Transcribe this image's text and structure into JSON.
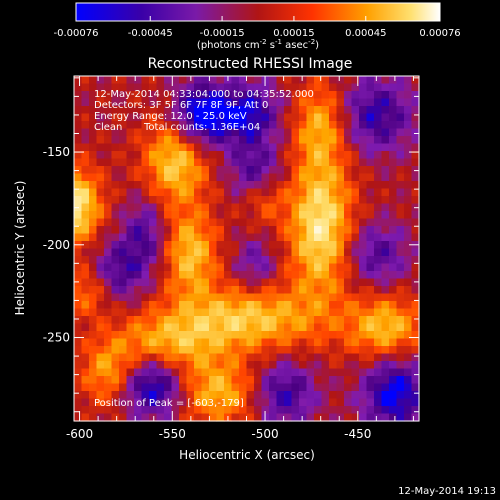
{
  "colorbar": {
    "ticks": [
      "-0.00076",
      "-0.00045",
      "-0.00015",
      "0.00015",
      "0.00045",
      "0.00076"
    ],
    "units_prefix": "(photons cm",
    "units_sup1": "-2",
    "units_mid": " s",
    "units_sup2": "-1",
    "units_mid2": " asec",
    "units_sup3": "-2",
    "units_suffix": ")",
    "min": -0.00076,
    "max": 0.00076
  },
  "annotations": {
    "line1": "12-May-2014 04:33:04.000 to 04:35:52.000",
    "line2": "Detectors: 3F 5F 6F 7F 8F 9F, Att 0",
    "line3": "Energy Range: 12.0 - 25.0 keV",
    "line4_a": "Clean",
    "line4_b": "Total counts: 1.36E+04",
    "peak": "Position of Peak = [-603,-179]"
  },
  "footer": {
    "timestamp": "12-May-2014 19:13"
  },
  "chart_data": {
    "type": "heatmap",
    "title": "Reconstructed RHESSI Image",
    "xlabel": "Heliocentric X (arcsec)",
    "ylabel": "Heliocentric Y (arcsec)",
    "xlim": [
      -603,
      -417
    ],
    "ylim": [
      -295,
      -109
    ],
    "xticks": [
      -600,
      -550,
      -500,
      -450
    ],
    "xtick_labels": [
      "-600",
      "-550",
      "-500",
      "-450"
    ],
    "yticks": [
      -150,
      -200,
      -250
    ],
    "ytick_labels": [
      "-150",
      "-200",
      "-250"
    ],
    "colormap": [
      "#0000ff",
      "#4b0082",
      "#7f1bb0",
      "#b01515",
      "#ff4500",
      "#ffa500",
      "#ffe070",
      "#ffffff"
    ],
    "sources": [
      {
        "x": -603,
        "y": -179,
        "amp": 0.00076,
        "sx": 10,
        "sy": 14
      },
      {
        "x": -470,
        "y": -190,
        "amp": 0.00072,
        "sx": 12,
        "sy": 26
      },
      {
        "x": -548,
        "y": -155,
        "amp": 0.0006,
        "sx": 12,
        "sy": 16
      },
      {
        "x": -540,
        "y": -205,
        "amp": 0.00055,
        "sx": 10,
        "sy": 16
      },
      {
        "x": -510,
        "y": -240,
        "amp": 0.00058,
        "sx": 28,
        "sy": 12
      },
      {
        "x": -555,
        "y": -255,
        "amp": 0.0005,
        "sx": 20,
        "sy": 12
      },
      {
        "x": -525,
        "y": -280,
        "amp": 0.0005,
        "sx": 16,
        "sy": 12
      },
      {
        "x": -435,
        "y": -245,
        "amp": 0.00055,
        "sx": 14,
        "sy": 12
      },
      {
        "x": -585,
        "y": -270,
        "amp": 0.0004,
        "sx": 10,
        "sy": 12
      },
      {
        "x": -470,
        "y": -135,
        "amp": 0.00045,
        "sx": 10,
        "sy": 16
      },
      {
        "x": -595,
        "y": -225,
        "amp": 0.00035,
        "sx": 10,
        "sy": 10
      },
      {
        "x": -500,
        "y": -175,
        "amp": 0.00025,
        "sx": 8,
        "sy": 10
      },
      {
        "x": -535,
        "y": -130,
        "amp": -0.00076,
        "sx": 10,
        "sy": 12
      },
      {
        "x": -510,
        "y": -130,
        "amp": -0.0006,
        "sx": 12,
        "sy": 12
      },
      {
        "x": -560,
        "y": -275,
        "amp": -0.0007,
        "sx": 12,
        "sy": 12
      },
      {
        "x": -490,
        "y": -280,
        "amp": -0.0005,
        "sx": 12,
        "sy": 12
      },
      {
        "x": -430,
        "y": -280,
        "amp": -0.00065,
        "sx": 12,
        "sy": 14
      },
      {
        "x": -440,
        "y": -130,
        "amp": -0.0005,
        "sx": 14,
        "sy": 14
      },
      {
        "x": -505,
        "y": -160,
        "amp": -0.0004,
        "sx": 10,
        "sy": 10
      },
      {
        "x": -580,
        "y": -215,
        "amp": -0.00045,
        "sx": 10,
        "sy": 12
      },
      {
        "x": -565,
        "y": -195,
        "amp": -0.0004,
        "sx": 8,
        "sy": 14
      },
      {
        "x": -505,
        "y": -210,
        "amp": -0.0003,
        "sx": 8,
        "sy": 10
      },
      {
        "x": -440,
        "y": -205,
        "amp": -0.0004,
        "sx": 12,
        "sy": 12
      }
    ]
  }
}
